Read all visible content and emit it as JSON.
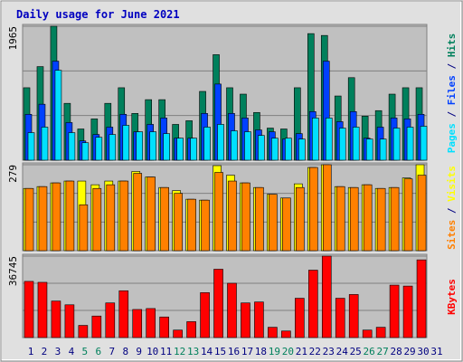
{
  "chart_data": [
    {
      "type": "bar",
      "title": "Daily usage for June 2021",
      "legend_separator": " / ",
      "ylim": [
        0,
        1965
      ],
      "yticks": [
        1965
      ],
      "series": [
        {
          "name": "Hits",
          "color": "#00805c",
          "values": [
            1063,
            1373,
            1965,
            834,
            458,
            606,
            834,
            1063,
            686,
            888,
            888,
            525,
            579,
            1009,
            1548,
            1063,
            969,
            700,
            471,
            458,
            1063,
            1857,
            1830,
            942,
            1211,
            646,
            727,
            969,
            1063,
            1063,
            null
          ]
        },
        {
          "name": "Files",
          "color": "#0040ff",
          "values": [
            673,
            821,
            1453,
            552,
            283,
            377,
            485,
            673,
            417,
            525,
            619,
            323,
            323,
            686,
            1117,
            686,
            619,
            444,
            417,
            310,
            390,
            713,
            1453,
            565,
            713,
            323,
            485,
            619,
            606,
            673,
            null
          ]
        },
        {
          "name": "Pages",
          "color": "#00e0ff",
          "values": [
            404,
            485,
            1319,
            404,
            256,
            336,
            377,
            511,
            417,
            417,
            390,
            323,
            323,
            485,
            525,
            431,
            417,
            363,
            323,
            323,
            310,
            619,
            619,
            471,
            485,
            310,
            310,
            471,
            485,
            498,
            null
          ]
        }
      ]
    },
    {
      "type": "bar",
      "legend_separator": " / ",
      "ylim": [
        0,
        279
      ],
      "yticks": [
        279
      ],
      "series": [
        {
          "name": "Visits",
          "color": "#ffff00",
          "values": [
            202,
            208,
            220,
            226,
            226,
            214,
            226,
            226,
            257,
            239,
            205,
            195,
            167,
            164,
            276,
            245,
            220,
            205,
            183,
            171,
            217,
            270,
            279,
            208,
            205,
            214,
            202,
            205,
            236,
            279,
            null
          ]
        },
        {
          "name": "Sites",
          "color": "#ff8000",
          "values": [
            202,
            208,
            220,
            226,
            149,
            202,
            214,
            226,
            251,
            239,
            205,
            186,
            167,
            164,
            254,
            226,
            220,
            205,
            183,
            171,
            205,
            270,
            279,
            208,
            205,
            214,
            202,
            205,
            233,
            245,
            null
          ]
        }
      ]
    },
    {
      "type": "bar",
      "ylim": [
        0,
        36745
      ],
      "yticks": [
        36745
      ],
      "categories": [
        "1",
        "2",
        "3",
        "4",
        "5",
        "6",
        "7",
        "8",
        "9",
        "10",
        "11",
        "12",
        "13",
        "14",
        "15",
        "16",
        "17",
        "18",
        "19",
        "20",
        "21",
        "22",
        "23",
        "24",
        "25",
        "26",
        "27",
        "28",
        "29",
        "30",
        "31"
      ],
      "category_colors": [
        "#000080",
        "#000080",
        "#000080",
        "#000080",
        "#00805c",
        "#00805c",
        "#000080",
        "#000080",
        "#000080",
        "#000080",
        "#000080",
        "#00805c",
        "#00805c",
        "#000080",
        "#000080",
        "#000080",
        "#000080",
        "#000080",
        "#00805c",
        "#00805c",
        "#000080",
        "#000080",
        "#000080",
        "#000080",
        "#000080",
        "#00805c",
        "#00805c",
        "#000080",
        "#000080",
        "#000080",
        "#000080"
      ],
      "series": [
        {
          "name": "KBytes",
          "color": "#ff0000",
          "values": [
            25344,
            24922,
            16474,
            14784,
            5491,
            9715,
            15629,
            21120,
            12672,
            13094,
            9293,
            3379,
            7181,
            20275,
            30835,
            24499,
            15629,
            16051,
            4646,
            2957,
            17741,
            30413,
            36745,
            17741,
            19430,
            3379,
            4646,
            23654,
            23232,
            35059,
            null
          ]
        }
      ]
    }
  ]
}
